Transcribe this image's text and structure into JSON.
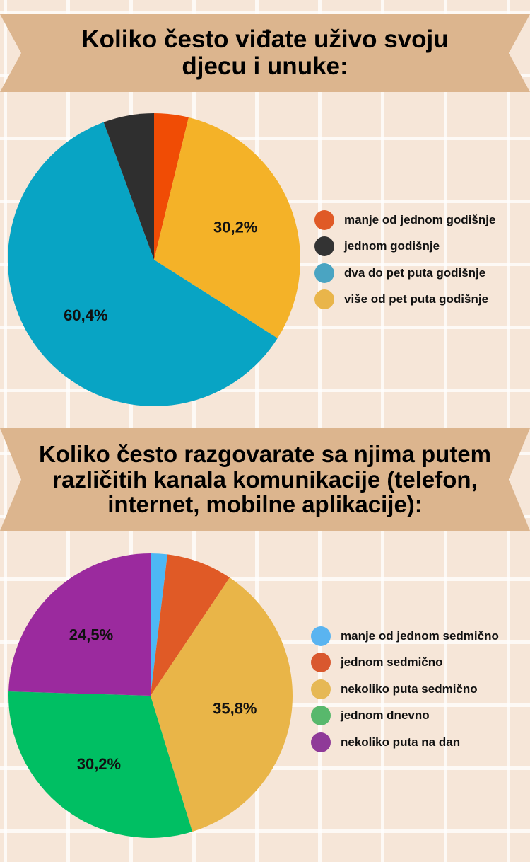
{
  "chart_data": [
    {
      "type": "pie",
      "title": "Koliko često viđate uživo svoju djecu i unuke:",
      "categories": [
        "manje od jednom godišnje",
        "jednom godišnje",
        "dva do pet puta godišnje",
        "više od pet puta godišnje"
      ],
      "values": [
        3.8,
        5.6,
        60.4,
        30.2
      ],
      "slice_order_clockwise_from_top": [
        0,
        3,
        2,
        1
      ],
      "slice_colors": [
        "#f04c05",
        "#2f2f2f",
        "#08a4c4",
        "#f4b228"
      ],
      "legend_colors": [
        "#e05a26",
        "#333333",
        "#4aa4c2",
        "#e9b54a"
      ],
      "data_labels": {
        "2": "60,4%",
        "3": "30,2%"
      },
      "legend": "right"
    },
    {
      "type": "pie",
      "title": "Koliko često razgovarate sa njima putem različitih kanala komunikacije (telefon, internet, mobilne aplikacije):",
      "categories": [
        "manje od jednom sedmično",
        "jednom sedmično",
        "nekoliko puta sedmično",
        "jednom dnevno",
        "nekoliko puta na dan"
      ],
      "values": [
        1.9,
        7.5,
        35.8,
        30.2,
        24.5
      ],
      "slice_order_clockwise_from_top": [
        0,
        1,
        2,
        3,
        4
      ],
      "slice_colors": [
        "#4db8f5",
        "#e05a26",
        "#e9b548",
        "#00bf63",
        "#9b2a9e"
      ],
      "legend_colors": [
        "#5ab4f0",
        "#d9582e",
        "#e6b855",
        "#58b86c",
        "#8f3a98"
      ],
      "data_labels": {
        "2": "35,8%",
        "3": "30,2%",
        "4": "24,5%"
      },
      "legend": "right"
    }
  ]
}
